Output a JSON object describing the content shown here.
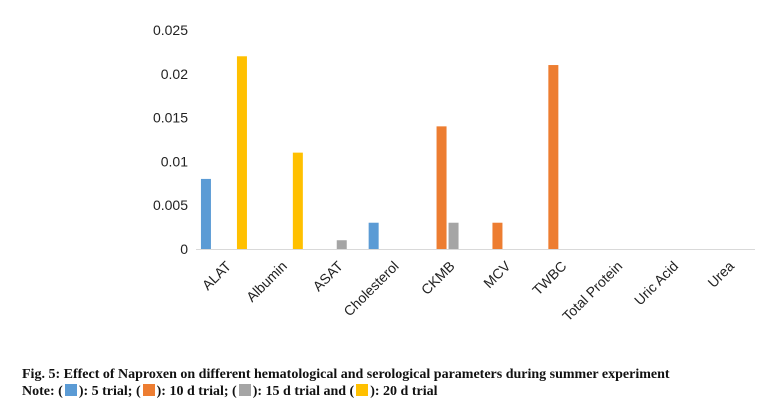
{
  "chart_data": {
    "type": "bar",
    "categories": [
      "ALAT",
      "Albumin",
      "ASAT",
      "Cholesterol",
      "CKMB",
      "MCV",
      "TWBC",
      "Total Protein",
      "Uric Acid",
      "Urea"
    ],
    "ylim": [
      0,
      0.025
    ],
    "yticks": [
      "0",
      "0.005",
      "0.01",
      "0.015",
      "0.02",
      "0.025"
    ],
    "grid": false,
    "series": [
      {
        "color": "#5b9bd5",
        "values": [
          0.008,
          0,
          0,
          0.003,
          0,
          0,
          0,
          0,
          0,
          0
        ]
      },
      {
        "color": "#ed7d31",
        "values": [
          0,
          0,
          0,
          0,
          0.014,
          0.003,
          0.021,
          0,
          0,
          0
        ]
      },
      {
        "color": "#a5a5a5",
        "values": [
          0,
          0,
          0.001,
          0,
          0.003,
          0,
          0,
          0,
          0,
          0
        ]
      },
      {
        "color": "#ffc000",
        "values": [
          0.022,
          0.011,
          0,
          0,
          0,
          0,
          0,
          0,
          0,
          0
        ]
      }
    ]
  },
  "caption": {
    "title": "Fig. 5: Effect of Naproxen on different hematological and serological parameters during summer experiment",
    "note_prefix": "Note: (",
    "note_5": "): 5 trial; (",
    "note_10": "): 10 d trial; (",
    "note_15": "): 15 d trial and (",
    "note_20": "): 20 d trial"
  }
}
